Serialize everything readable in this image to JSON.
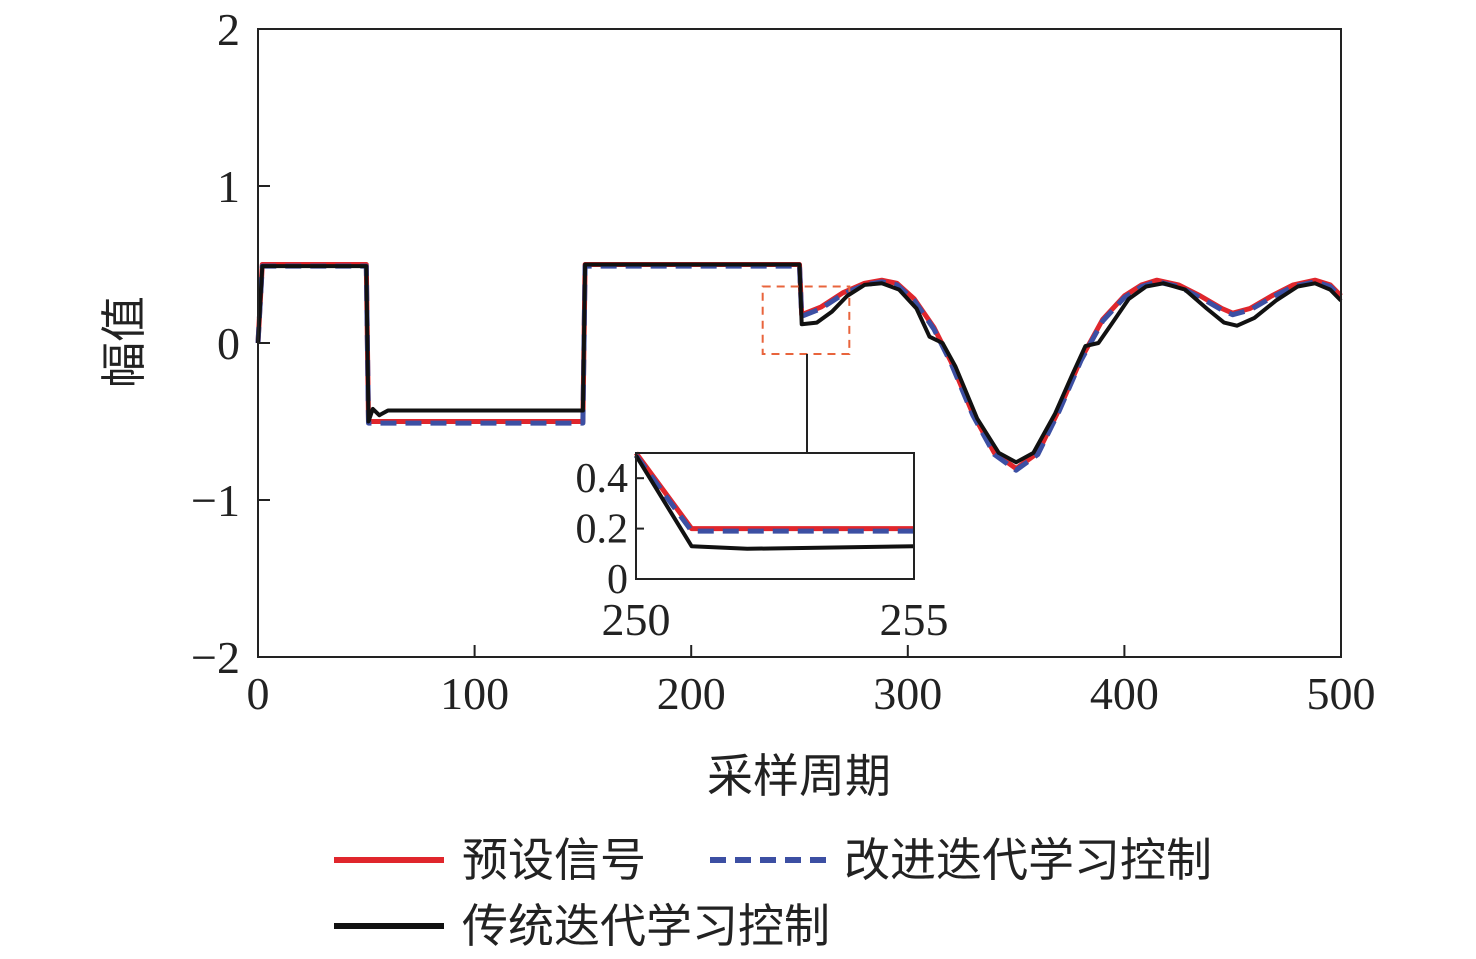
{
  "chart_data": {
    "type": "line",
    "xlabel": "采样周期",
    "ylabel": "幅值",
    "xlim": [
      0,
      500
    ],
    "ylim": [
      -2,
      2
    ],
    "x_ticks": [
      0,
      100,
      200,
      300,
      400,
      500
    ],
    "y_ticks": [
      2,
      1,
      0,
      -1,
      -2
    ],
    "y_tick_labels": [
      "2",
      "1",
      "0",
      "−1",
      "−2"
    ],
    "grid": false,
    "legend_position": "bottom",
    "series": [
      {
        "name": "预设信号",
        "color": "#e0262c",
        "dash": "solid",
        "points": [
          [
            0,
            0
          ],
          [
            2,
            0.5
          ],
          [
            50,
            0.5
          ],
          [
            51,
            -0.5
          ],
          [
            150,
            -0.5
          ],
          [
            151,
            0.5
          ],
          [
            250,
            0.5
          ],
          [
            251,
            0.18
          ],
          [
            260,
            0.23
          ],
          [
            270,
            0.32
          ],
          [
            280,
            0.38
          ],
          [
            288,
            0.4
          ],
          [
            295,
            0.38
          ],
          [
            303,
            0.28
          ],
          [
            312,
            0.1
          ],
          [
            320,
            -0.12
          ],
          [
            330,
            -0.45
          ],
          [
            340,
            -0.7
          ],
          [
            350,
            -0.8
          ],
          [
            360,
            -0.7
          ],
          [
            370,
            -0.42
          ],
          [
            380,
            -0.1
          ],
          [
            390,
            0.15
          ],
          [
            400,
            0.3
          ],
          [
            408,
            0.37
          ],
          [
            415,
            0.4
          ],
          [
            425,
            0.37
          ],
          [
            435,
            0.3
          ],
          [
            445,
            0.22
          ],
          [
            450,
            0.19
          ],
          [
            458,
            0.22
          ],
          [
            468,
            0.3
          ],
          [
            478,
            0.37
          ],
          [
            488,
            0.4
          ],
          [
            495,
            0.37
          ],
          [
            500,
            0.3
          ]
        ]
      },
      {
        "name": "改进迭代学习控制",
        "color": "#3c4fa3",
        "dash": "dashed",
        "points": [
          [
            0,
            0
          ],
          [
            2,
            0.49
          ],
          [
            50,
            0.49
          ],
          [
            51,
            -0.51
          ],
          [
            150,
            -0.51
          ],
          [
            151,
            0.49
          ],
          [
            250,
            0.49
          ],
          [
            251,
            0.17
          ],
          [
            260,
            0.22
          ],
          [
            270,
            0.31
          ],
          [
            280,
            0.37
          ],
          [
            288,
            0.39
          ],
          [
            295,
            0.37
          ],
          [
            303,
            0.27
          ],
          [
            312,
            0.09
          ],
          [
            320,
            -0.13
          ],
          [
            330,
            -0.46
          ],
          [
            340,
            -0.71
          ],
          [
            350,
            -0.81
          ],
          [
            360,
            -0.71
          ],
          [
            370,
            -0.43
          ],
          [
            380,
            -0.11
          ],
          [
            390,
            0.14
          ],
          [
            400,
            0.29
          ],
          [
            408,
            0.36
          ],
          [
            415,
            0.39
          ],
          [
            425,
            0.36
          ],
          [
            435,
            0.29
          ],
          [
            445,
            0.21
          ],
          [
            450,
            0.18
          ],
          [
            458,
            0.21
          ],
          [
            468,
            0.29
          ],
          [
            478,
            0.36
          ],
          [
            488,
            0.39
          ],
          [
            495,
            0.36
          ],
          [
            500,
            0.29
          ]
        ]
      },
      {
        "name": "传统迭代学习控制",
        "color": "#111111",
        "dash": "solid",
        "points": [
          [
            0,
            0
          ],
          [
            2,
            0.49
          ],
          [
            50,
            0.49
          ],
          [
            51,
            -0.5
          ],
          [
            53,
            -0.42
          ],
          [
            56,
            -0.46
          ],
          [
            60,
            -0.43
          ],
          [
            150,
            -0.43
          ],
          [
            151,
            0.5
          ],
          [
            250,
            0.5
          ],
          [
            251,
            0.12
          ],
          [
            258,
            0.13
          ],
          [
            265,
            0.2
          ],
          [
            272,
            0.3
          ],
          [
            280,
            0.37
          ],
          [
            288,
            0.38
          ],
          [
            296,
            0.34
          ],
          [
            304,
            0.22
          ],
          [
            310,
            0.04
          ],
          [
            316,
            0.0
          ],
          [
            322,
            -0.15
          ],
          [
            332,
            -0.48
          ],
          [
            342,
            -0.7
          ],
          [
            350,
            -0.76
          ],
          [
            358,
            -0.7
          ],
          [
            368,
            -0.45
          ],
          [
            376,
            -0.2
          ],
          [
            382,
            -0.02
          ],
          [
            388,
            0.0
          ],
          [
            394,
            0.12
          ],
          [
            402,
            0.28
          ],
          [
            410,
            0.36
          ],
          [
            418,
            0.38
          ],
          [
            428,
            0.34
          ],
          [
            438,
            0.22
          ],
          [
            446,
            0.13
          ],
          [
            452,
            0.11
          ],
          [
            460,
            0.16
          ],
          [
            470,
            0.27
          ],
          [
            480,
            0.36
          ],
          [
            488,
            0.38
          ],
          [
            495,
            0.34
          ],
          [
            500,
            0.27
          ]
        ]
      }
    ],
    "inset": {
      "xlim": [
        250,
        255
      ],
      "ylim": [
        0,
        0.5
      ],
      "x_ticks": [
        250,
        255
      ],
      "y_ticks": [
        0,
        0.2,
        0.4
      ],
      "y_tick_labels": [
        "0",
        "0.2",
        "0.4"
      ],
      "series": [
        {
          "name": "预设信号",
          "points": [
            [
              250,
              0.5
            ],
            [
              251,
              0.2
            ],
            [
              255,
              0.2
            ]
          ]
        },
        {
          "name": "改进迭代学习控制",
          "points": [
            [
              250,
              0.49
            ],
            [
              251,
              0.19
            ],
            [
              255,
              0.19
            ]
          ]
        },
        {
          "name": "传统迭代学习控制",
          "points": [
            [
              250,
              0.49
            ],
            [
              251,
              0.13
            ],
            [
              252,
              0.12
            ],
            [
              255,
              0.13
            ]
          ]
        }
      ]
    },
    "zoom_box": {
      "x": [
        233,
        273
      ],
      "y": [
        -0.07,
        0.36
      ]
    }
  }
}
